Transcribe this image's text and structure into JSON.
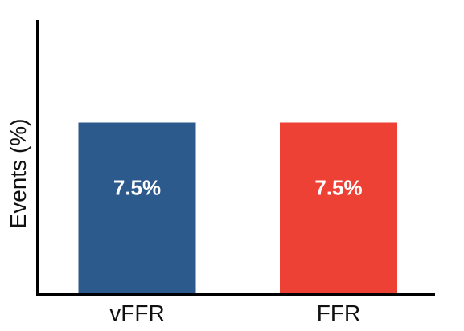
{
  "chart_data": {
    "type": "bar",
    "title": "",
    "xlabel": "",
    "ylabel": "Events (%)",
    "categories": [
      "vFFR",
      "FFR"
    ],
    "values": [
      7.5,
      7.5
    ],
    "data_labels": [
      "7.5%",
      "7.5%"
    ],
    "colors": [
      "#2d5a8c",
      "#ee4136"
    ],
    "ylim": [
      0,
      12
    ],
    "grid": false,
    "legend": "none"
  }
}
